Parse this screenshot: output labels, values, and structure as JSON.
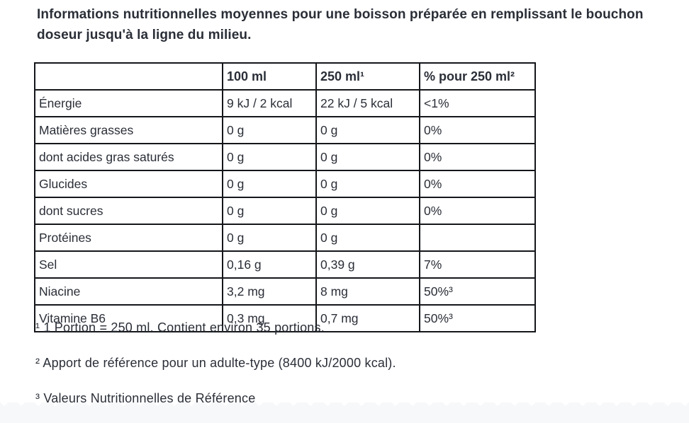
{
  "intro": "Informations nutritionnelles moyennes pour une boisson préparée en remplissant le bouchon doseur jusqu'à la ligne du milieu.",
  "table": {
    "headers": [
      "",
      "100 ml",
      "250 ml¹",
      "% pour 250 ml²"
    ],
    "rows": [
      [
        "Énergie",
        "9 kJ / 2 kcal",
        "22 kJ / 5 kcal",
        "<1%"
      ],
      [
        "Matières grasses",
        "0 g",
        "0 g",
        "0%"
      ],
      [
        "dont acides gras saturés",
        "0 g",
        "0 g",
        "0%"
      ],
      [
        "Glucides",
        "0 g",
        "0 g",
        "0%"
      ],
      [
        "dont sucres",
        "0 g",
        "0 g",
        "0%"
      ],
      [
        "Protéines",
        "0 g",
        "0 g",
        ""
      ],
      [
        "Sel",
        "0,16 g",
        "0,39 g",
        "7%"
      ],
      [
        "Niacine",
        "3,2 mg",
        "8 mg",
        "50%³"
      ],
      [
        "Vitamine B6",
        "0,3 mg",
        "0,7 mg",
        "50%³"
      ]
    ]
  },
  "footnotes": [
    "¹ 1 Portion = 250 ml. Contient environ 35 portions.",
    "² Apport de référence pour un adulte-type (8400 kJ/2000 kcal).",
    "³ Valeurs Nutritionnelles de Référence"
  ],
  "colors": {
    "text": "#2a2e37",
    "table_border": "#14161a",
    "bottom_strip": "#f7f8fa"
  }
}
